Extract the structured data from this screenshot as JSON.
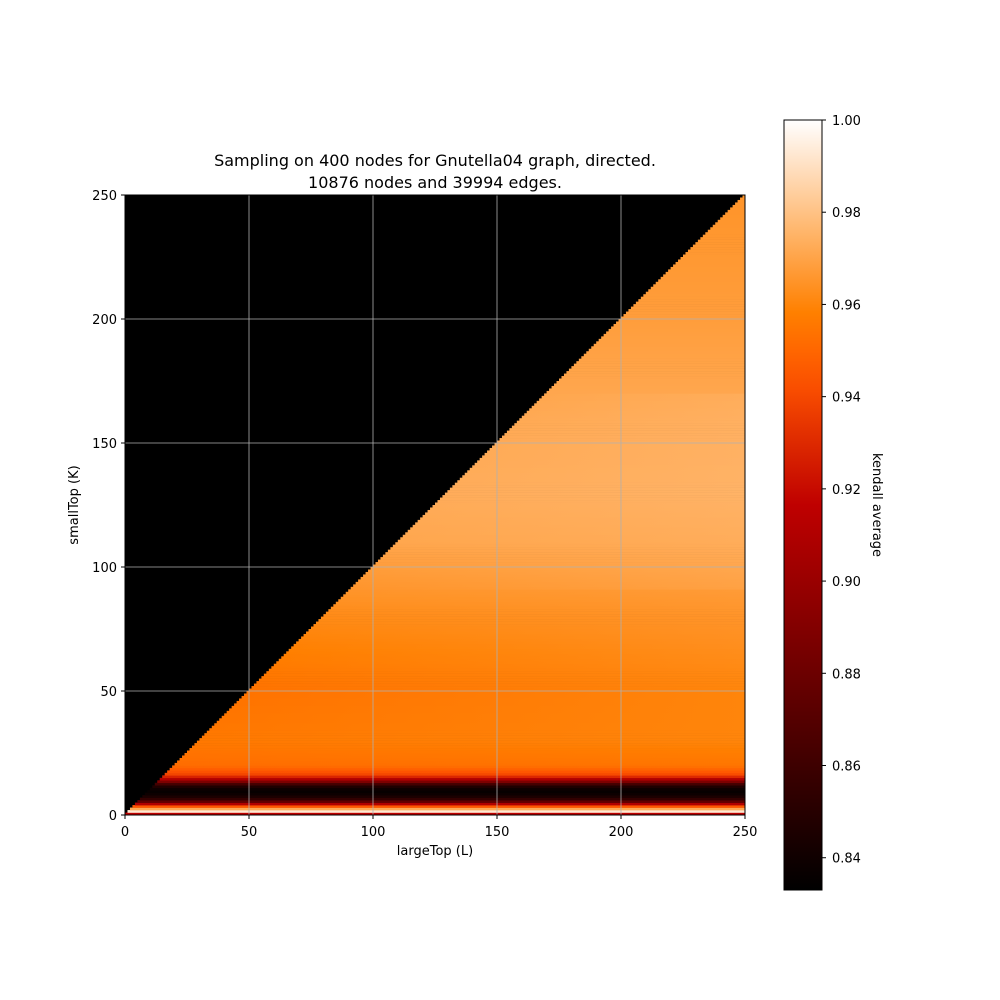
{
  "chart_data": {
    "type": "heatmap",
    "title_line1": "Sampling on 400 nodes for Gnutella04 graph, directed.",
    "title_line2": "10876 nodes and 39994 edges.",
    "xlabel": "largeTop (L)",
    "ylabel": "smallTop (K)",
    "xlim": [
      0,
      250
    ],
    "ylim": [
      0,
      250
    ],
    "x_ticks": [
      0,
      50,
      100,
      150,
      200,
      250
    ],
    "y_ticks": [
      0,
      50,
      100,
      150,
      200,
      250
    ],
    "grid": true,
    "colormap": "gist_heat",
    "colorbar": {
      "label": "kendall average",
      "min": 0.833,
      "max": 1.0,
      "ticks": [
        "0.84",
        "0.86",
        "0.88",
        "0.90",
        "0.92",
        "0.94",
        "0.96",
        "0.98",
        "1.00"
      ]
    },
    "masked_region": "K > L",
    "masked_color": "#000000",
    "row_profile": {
      "description_values": "approximate kendall average by smallTop (K) at large L",
      "K": [
        0,
        1,
        2,
        3,
        4,
        5,
        6,
        8,
        10,
        12,
        14,
        16,
        20,
        30,
        50,
        80,
        110,
        130,
        160,
        200,
        250
      ],
      "value": [
        0.833,
        1.0,
        0.985,
        0.96,
        0.93,
        0.89,
        0.86,
        0.84,
        0.835,
        0.85,
        0.9,
        0.94,
        0.955,
        0.96,
        0.96,
        0.965,
        0.971,
        0.973,
        0.972,
        0.968,
        0.965
      ]
    }
  }
}
